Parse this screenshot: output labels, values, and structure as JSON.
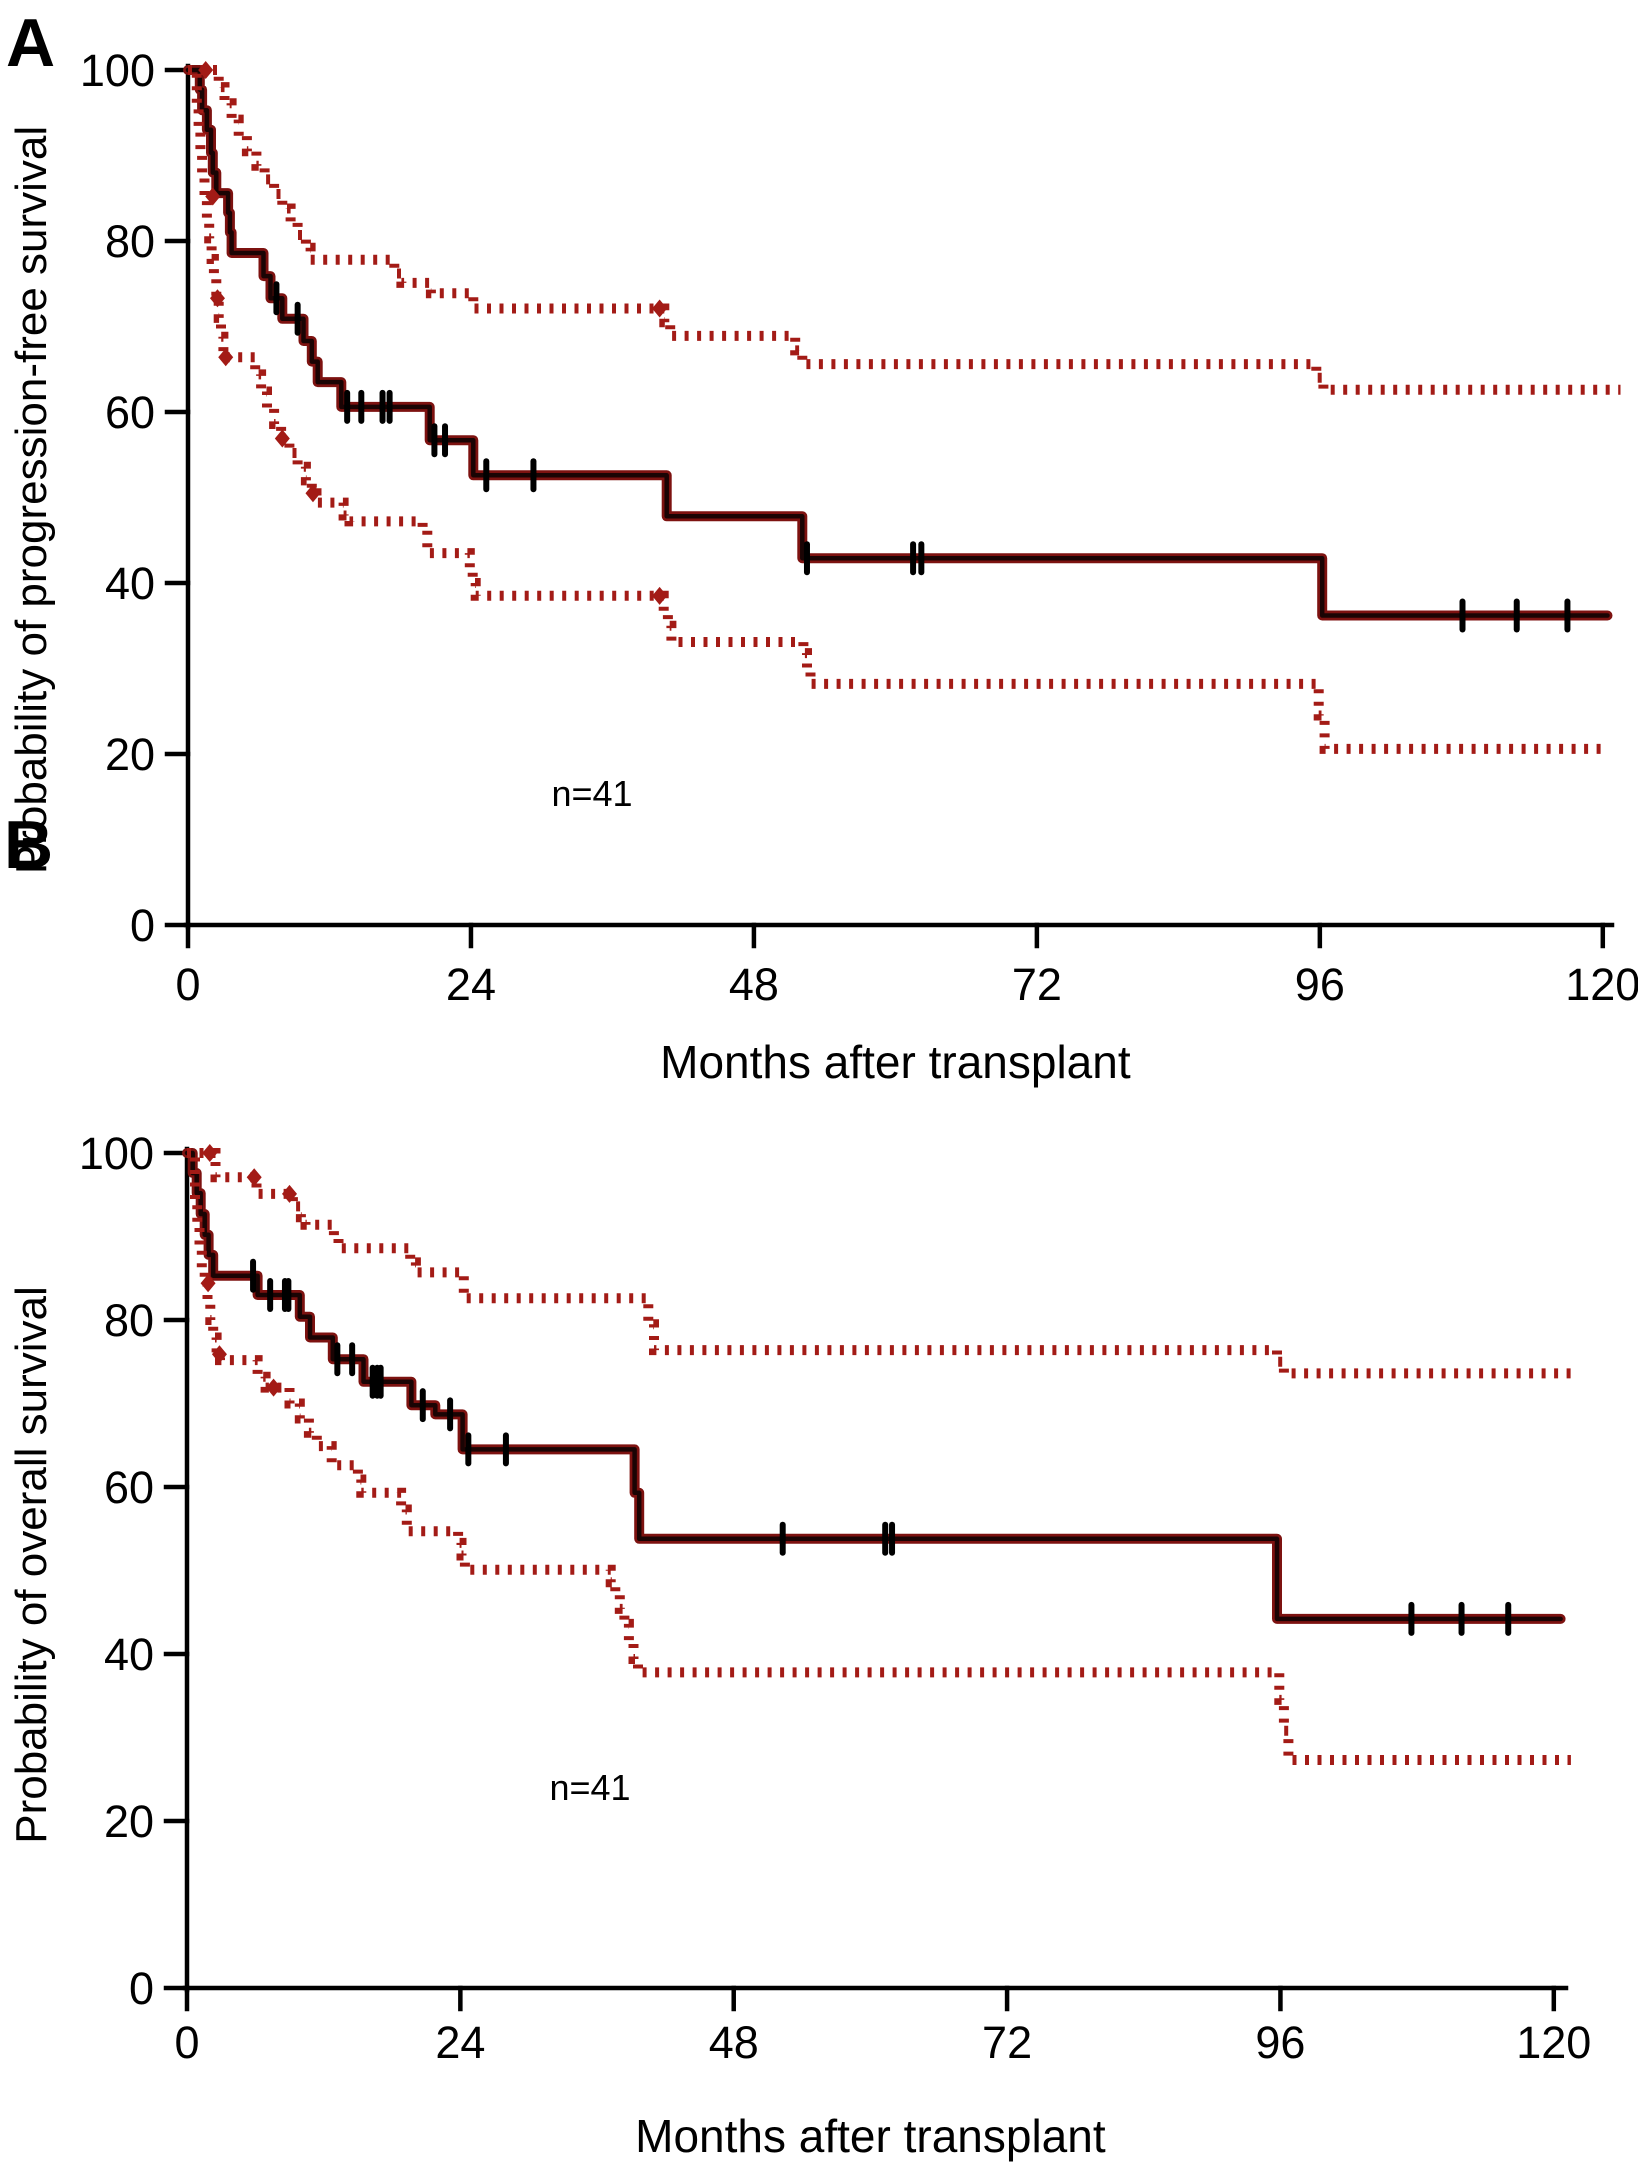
{
  "figure": {
    "background": "#ffffff",
    "colors": {
      "axis": "#000000",
      "text": "#000000",
      "solid_edge": "#7d1210",
      "solid_core": "#1a0404",
      "ci_dotted": "#a31b16",
      "censor": "#000000"
    }
  },
  "chart_data": [
    {
      "type": "line",
      "panel_letter": "A",
      "ylabel": "Probability of progression-free survival",
      "xlabel": "Months after transplant",
      "annotation": "n=41",
      "x_ticks": [
        0,
        24,
        48,
        72,
        96,
        120
      ],
      "y_ticks": [
        0,
        20,
        40,
        60,
        80,
        100
      ],
      "xlim": [
        0,
        120
      ],
      "ylim": [
        0,
        100
      ],
      "grid": false,
      "legend": "none",
      "series": [
        {
          "name": "progression-free survival (Kaplan-Meier estimate)",
          "style": "solid-step",
          "steps": [
            [
              0,
              100
            ],
            [
              1.0,
              97.7
            ],
            [
              1.2,
              95.3
            ],
            [
              1.6,
              93.0
            ],
            [
              1.95,
              90.3
            ],
            [
              2.1,
              88.0
            ],
            [
              2.4,
              85.6
            ],
            [
              3.4,
              83.3
            ],
            [
              3.55,
              81.0
            ],
            [
              3.7,
              78.6
            ],
            [
              6.4,
              75.9
            ],
            [
              7.0,
              73.3
            ],
            [
              8.0,
              70.9
            ],
            [
              9.8,
              68.3
            ],
            [
              10.5,
              65.9
            ],
            [
              11.0,
              63.5
            ],
            [
              13.0,
              60.6
            ],
            [
              20.5,
              56.7
            ],
            [
              24.2,
              52.6
            ],
            [
              40.6,
              47.8
            ],
            [
              52.1,
              42.9
            ],
            [
              96.2,
              36.2
            ]
          ],
          "end_month": 120.4,
          "censor_months": [
            7.5,
            9.3,
            13.5,
            14.7,
            16.5,
            17.1,
            20.9,
            21.8,
            25.3,
            29.3,
            52.5,
            61.5,
            62.2,
            108.1,
            112.7,
            117.0
          ]
        },
        {
          "name": "95% CI upper limit",
          "style": "dotted-step",
          "steps": [
            [
              0,
              100
            ],
            [
              2.6,
              98.0
            ],
            [
              3.1,
              96.1
            ],
            [
              3.7,
              94.2
            ],
            [
              4.3,
              92.3
            ],
            [
              5.0,
              90.5
            ],
            [
              5.8,
              88.8
            ],
            [
              6.5,
              87.2
            ],
            [
              7.3,
              85.5
            ],
            [
              8.0,
              83.8
            ],
            [
              8.7,
              82.2
            ],
            [
              9.3,
              80.7
            ],
            [
              10.0,
              79.2
            ],
            [
              10.4,
              77.8
            ],
            [
              17.5,
              76.2
            ],
            [
              18.1,
              75.1
            ],
            [
              20.6,
              73.9
            ],
            [
              24.2,
              72.1
            ],
            [
              40.4,
              70.5
            ],
            [
              40.9,
              68.9
            ],
            [
              51.5,
              67.2
            ],
            [
              52.1,
              65.6
            ],
            [
              95.7,
              64.0
            ],
            [
              96.3,
              62.6
            ]
          ],
          "end_month": 121.5,
          "diamond_points": [
            [
              1.5,
              100
            ],
            [
              40.0,
              72.1
            ]
          ]
        },
        {
          "name": "95% CI lower limit",
          "style": "dotted-step",
          "steps": [
            [
              0,
              100
            ],
            [
              0.75,
              95.5
            ],
            [
              0.9,
              92.8
            ],
            [
              1.05,
              90.2
            ],
            [
              1.2,
              87.7
            ],
            [
              1.4,
              85.2
            ],
            [
              1.6,
              82.7
            ],
            [
              1.8,
              80.3
            ],
            [
              2.0,
              77.9
            ],
            [
              2.2,
              75.6
            ],
            [
              2.4,
              73.3
            ],
            [
              2.6,
              71.0
            ],
            [
              2.8,
              68.8
            ],
            [
              3.0,
              66.4
            ],
            [
              5.7,
              64.4
            ],
            [
              6.2,
              62.4
            ],
            [
              6.7,
              60.5
            ],
            [
              7.3,
              58.6
            ],
            [
              7.9,
              56.9
            ],
            [
              8.6,
              55.2
            ],
            [
              9.3,
              53.6
            ],
            [
              10.0,
              52.0
            ],
            [
              10.5,
              50.5
            ],
            [
              10.9,
              49.4
            ],
            [
              13.2,
              47.9
            ],
            [
              13.7,
              47.2
            ],
            [
              19.9,
              46.2
            ],
            [
              20.3,
              43.5
            ],
            [
              23.9,
              41.6
            ],
            [
              24.15,
              40.0
            ],
            [
              24.4,
              38.5
            ],
            [
              40.35,
              36.6
            ],
            [
              40.7,
              35.0
            ],
            [
              41.0,
              33.1
            ],
            [
              52.2,
              31.8
            ],
            [
              52.5,
              30.0
            ],
            [
              52.8,
              28.2
            ],
            [
              95.9,
              24.5
            ],
            [
              96.4,
              20.6
            ]
          ],
          "end_month": 120.2,
          "diamond_points": [
            [
              2.1,
              85.2
            ],
            [
              2.5,
              73.3
            ],
            [
              3.2,
              66.4
            ],
            [
              8.0,
              56.9
            ],
            [
              10.6,
              50.5
            ],
            [
              40.0,
              38.5
            ]
          ]
        }
      ]
    },
    {
      "type": "line",
      "panel_letter": "B",
      "ylabel": "Probability of overall survival",
      "xlabel": "Months after transplant",
      "annotation": "n=41",
      "x_ticks": [
        0,
        24,
        48,
        72,
        96,
        120
      ],
      "y_ticks": [
        0,
        20,
        40,
        60,
        80,
        100
      ],
      "xlim": [
        0,
        120
      ],
      "ylim": [
        0,
        100
      ],
      "grid": false,
      "legend": "none",
      "series": [
        {
          "name": "overall survival (Kaplan-Meier estimate)",
          "style": "solid-step",
          "steps": [
            [
              0,
              100
            ],
            [
              0.5,
              97.6
            ],
            [
              0.85,
              95.2
            ],
            [
              1.2,
              92.7
            ],
            [
              1.55,
              90.2
            ],
            [
              1.9,
              87.8
            ],
            [
              2.3,
              85.3
            ],
            [
              6.2,
              83.0
            ],
            [
              9.9,
              80.4
            ],
            [
              10.8,
              77.9
            ],
            [
              12.8,
              75.3
            ],
            [
              15.5,
              72.6
            ],
            [
              19.7,
              69.8
            ],
            [
              21.8,
              68.7
            ],
            [
              24.2,
              64.5
            ],
            [
              39.3,
              59.3
            ],
            [
              39.7,
              53.8
            ],
            [
              95.7,
              44.2
            ]
          ],
          "end_month": 120.6,
          "censor_months": [
            5.8,
            7.3,
            8.6,
            8.9,
            13.2,
            14.5,
            16.3,
            16.7,
            17.0,
            20.7,
            23.1,
            24.7,
            28.0,
            52.3,
            61.3,
            61.9,
            107.5,
            111.9,
            116.0
          ]
        },
        {
          "name": "95% CI upper limit",
          "style": "dotted-step",
          "steps": [
            [
              0,
              100
            ],
            [
              2.5,
              97.1
            ],
            [
              6.1,
              95.1
            ],
            [
              9.3,
              93.6
            ],
            [
              10.0,
              92.3
            ],
            [
              10.4,
              91.4
            ],
            [
              12.9,
              90.1
            ],
            [
              13.3,
              88.6
            ],
            [
              19.6,
              86.9
            ],
            [
              20.1,
              85.7
            ],
            [
              24.3,
              82.6
            ],
            [
              40.5,
              79.5
            ],
            [
              41.0,
              76.4
            ],
            [
              95.7,
              75.0
            ],
            [
              96.3,
              73.6
            ]
          ],
          "end_month": 122.0,
          "diamond_points": [
            [
              2.0,
              100
            ],
            [
              5.9,
              97.1
            ],
            [
              9.0,
              95.1
            ]
          ]
        },
        {
          "name": "95% CI lower limit",
          "style": "dotted-step",
          "steps": [
            [
              0,
              100
            ],
            [
              0.7,
              94.3
            ],
            [
              0.9,
              91.2
            ],
            [
              1.1,
              88.5
            ],
            [
              1.3,
              86.3
            ],
            [
              1.55,
              84.4
            ],
            [
              1.8,
              82.2
            ],
            [
              2.05,
              80.0
            ],
            [
              2.3,
              77.9
            ],
            [
              2.6,
              75.9
            ],
            [
              2.9,
              75.2
            ],
            [
              6.2,
              73.2
            ],
            [
              6.9,
              71.9
            ],
            [
              9.0,
              70.0
            ],
            [
              9.9,
              68.2
            ],
            [
              10.7,
              66.5
            ],
            [
              11.4,
              64.9
            ],
            [
              12.7,
              62.6
            ],
            [
              15.0,
              60.9
            ],
            [
              15.3,
              59.3
            ],
            [
              18.8,
              57.3
            ],
            [
              19.3,
              54.7
            ],
            [
              23.8,
              53.3
            ],
            [
              24.1,
              51.8
            ],
            [
              24.4,
              50.1
            ],
            [
              37.2,
              48.6
            ],
            [
              37.6,
              47.1
            ],
            [
              38.0,
              45.4
            ],
            [
              38.4,
              43.6
            ],
            [
              38.8,
              41.6
            ],
            [
              39.2,
              39.4
            ],
            [
              39.6,
              37.8
            ],
            [
              95.9,
              34.5
            ],
            [
              96.3,
              30.8
            ],
            [
              96.7,
              27.3
            ]
          ],
          "end_month": 121.5,
          "diamond_points": [
            [
              1.85,
              84.4
            ],
            [
              2.85,
              75.9
            ],
            [
              7.6,
              71.9
            ]
          ]
        }
      ]
    }
  ]
}
